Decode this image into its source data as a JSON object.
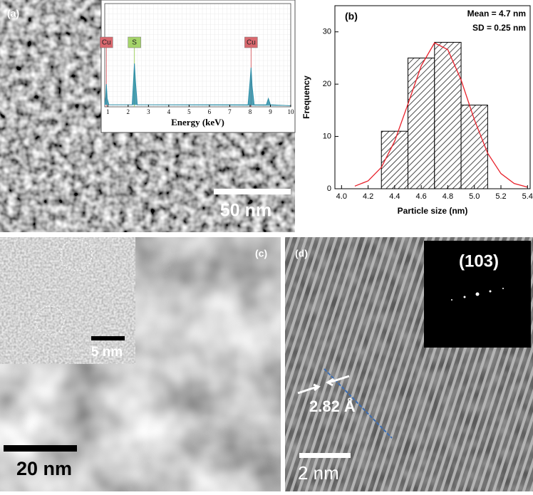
{
  "panels": {
    "a": {
      "label": "(a)",
      "scale_bar": "50 nm"
    },
    "c": {
      "label": "(c)",
      "scale_bar": "20 nm",
      "inset_scale_bar": "5 nm"
    },
    "d": {
      "label": "(d)",
      "scale_bar": "2 nm",
      "spacing": "2.82 Å",
      "fft_label": "(103)"
    }
  },
  "chart_data": [
    {
      "type": "line",
      "xlabel": "Energy (keV)",
      "xlim": [
        0.85,
        10
      ],
      "ylim": [
        0,
        100
      ],
      "xticks": [
        1,
        2,
        3,
        4,
        5,
        6,
        7,
        8,
        9,
        10
      ],
      "x": [
        0.85,
        0.9,
        0.93,
        0.97,
        1.05,
        2.2,
        2.28,
        2.31,
        2.36,
        2.45,
        7.9,
        8.0,
        8.05,
        8.1,
        8.2,
        8.8,
        8.9,
        9.0,
        10
      ],
      "series": [
        {
          "color": "#2f8fa8",
          "values": [
            2,
            10,
            22,
            8,
            2,
            2,
            30,
            42,
            25,
            2,
            2,
            25,
            38,
            20,
            2,
            2,
            8,
            2,
            1
          ]
        }
      ],
      "peaks": [
        {
          "label": "Cu",
          "x": 0.93,
          "color": "#d9686e"
        },
        {
          "label": "S",
          "x": 2.31,
          "color": "#a5d46a"
        },
        {
          "label": "Cu",
          "x": 8.05,
          "color": "#d9686e"
        }
      ]
    },
    {
      "type": "histogram",
      "panel": "(b)",
      "xlabel": "Particle size (nm)",
      "ylabel": "Frequency",
      "annotations": [
        "Mean = 4.7 nm",
        "SD = 0.25 nm"
      ],
      "bins": [
        4.3,
        4.5,
        4.7,
        4.9,
        5.1
      ],
      "counts": [
        11,
        25,
        28,
        16
      ],
      "xlim": [
        3.95,
        5.42
      ],
      "ylim": [
        0,
        35
      ],
      "xticks": [
        {
          "value": 4,
          "label": "4.0"
        },
        4.2,
        4.4,
        4.6,
        4.8,
        {
          "value": 5,
          "label": "5.0"
        },
        5.2,
        5.4
      ],
      "yticks": [
        0,
        10,
        20,
        30
      ],
      "fit": {
        "color": "#e8202a",
        "x": [
          4.1,
          4.2,
          4.3,
          4.4,
          4.5,
          4.6,
          4.7,
          4.8,
          4.9,
          5.0,
          5.1,
          5.2,
          5.3,
          5.4
        ],
        "values": [
          0.5,
          1.5,
          4.1,
          9.1,
          16.2,
          23.5,
          27.9,
          26.6,
          20.8,
          13.2,
          6.8,
          2.9,
          1,
          0.3
        ]
      }
    }
  ]
}
